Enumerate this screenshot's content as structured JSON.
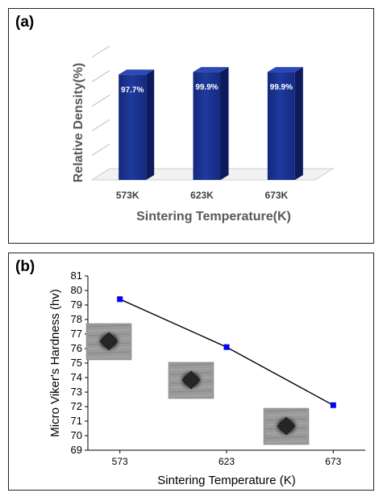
{
  "chart_data": [
    {
      "panel_label": "(a)",
      "type": "bar",
      "style": "3d",
      "categories": [
        "573K",
        "623K",
        "673K"
      ],
      "values": [
        97.7,
        99.9,
        99.9
      ],
      "data_labels": [
        "97.7%",
        "99.9%",
        "99.9%"
      ],
      "xlabel": "Sintering Temperature(K)",
      "ylabel": "Relative Density(%)",
      "ylim": [
        0,
        100
      ],
      "bar_color": "#1f3a9e",
      "legend": "none"
    },
    {
      "panel_label": "(b)",
      "type": "line",
      "x": [
        573,
        623,
        673
      ],
      "y": [
        79.4,
        76.1,
        72.1
      ],
      "xlabel": "Sintering Temperature (K)",
      "ylabel": "Micro Viker's Hardness (hv)",
      "xticks": [
        "573",
        "623",
        "673"
      ],
      "ylim": [
        69,
        81
      ],
      "yticks": [
        "69",
        "70",
        "71",
        "72",
        "73",
        "74",
        "75",
        "76",
        "77",
        "78",
        "79",
        "80",
        "81"
      ],
      "marker": "square",
      "marker_color": "#0000ff",
      "line_color": "#000000",
      "insets": [
        "indentation-micrograph-573",
        "indentation-micrograph-623",
        "indentation-micrograph-673"
      ],
      "legend": "none"
    }
  ]
}
